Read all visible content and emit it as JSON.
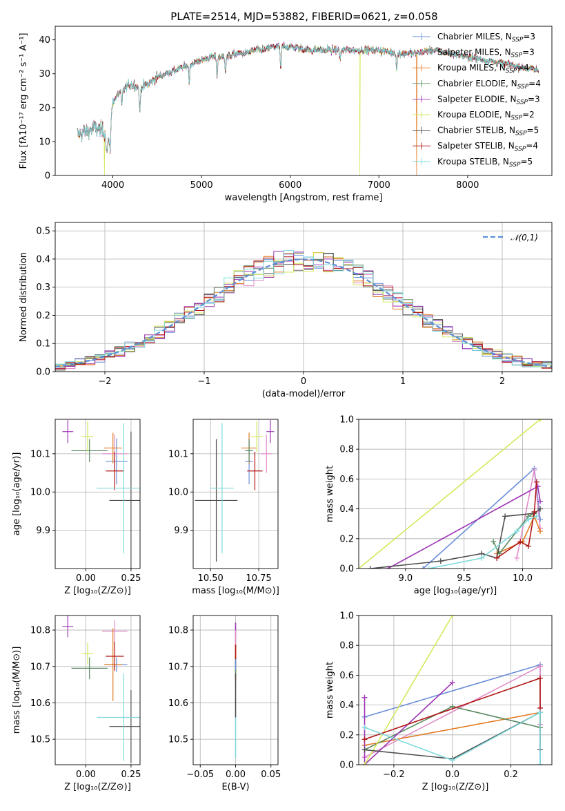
{
  "figure": {
    "title": "PLATE=2514, MJD=53882, FIBERID=0621, z=0.058",
    "models": [
      {
        "name": "Chabrier MILES",
        "nssp": "3",
        "color": "#6a8fd8"
      },
      {
        "name": "Salpeter MILES",
        "nssp": "3",
        "color": "#e08cc8"
      },
      {
        "name": "Kroupa MILES",
        "nssp": "4",
        "color": "#e07b22"
      },
      {
        "name": "Chabrier ELODIE",
        "nssp": "4",
        "color": "#5b8a62"
      },
      {
        "name": "Salpeter ELODIE",
        "nssp": "3",
        "color": "#9c32b4"
      },
      {
        "name": "Kroupa ELODIE",
        "nssp": "2",
        "color": "#d4e85a"
      },
      {
        "name": "Chabrier STELIB",
        "nssp": "5",
        "color": "#4d4d4d"
      },
      {
        "name": "Salpeter STELIB",
        "nssp": "4",
        "color": "#b01414"
      },
      {
        "name": "Kroupa STELIB",
        "nssp": "5",
        "color": "#7fd9dc"
      }
    ],
    "legend_nssp_label": "N",
    "legend_nssp_sub": "SSP"
  },
  "chart_data": [
    {
      "id": "spectrum",
      "type": "line",
      "xlabel": "wavelength [Angstrom, rest frame]",
      "ylabel": "Flux [fλ10⁻¹⁷ erg cm⁻² s⁻¹ A⁻¹]",
      "xlim": [
        3350,
        8950
      ],
      "ylim": [
        0,
        44
      ],
      "xticks": [
        4000,
        5000,
        6000,
        7000,
        8000
      ],
      "yticks": [
        0,
        10,
        20,
        30,
        40
      ],
      "grid": false,
      "legend": "top-right",
      "continuum": {
        "x": [
          3600,
          3700,
          3800,
          3900,
          3960,
          4000,
          4100,
          4200,
          4300,
          4400,
          4500,
          4600,
          4700,
          4800,
          4900,
          5000,
          5100,
          5200,
          5300,
          5400,
          5500,
          5600,
          5700,
          5800,
          5900,
          6000,
          6200,
          6400,
          6600,
          6800,
          7000,
          7200,
          7400,
          7600,
          7800,
          8000,
          8200,
          8400,
          8600,
          8800
        ],
        "y": [
          12,
          13,
          14,
          13,
          10,
          22,
          25,
          27,
          26,
          27,
          29,
          30,
          31,
          32,
          33,
          34,
          35,
          35,
          35,
          36,
          36,
          37,
          37,
          38,
          38,
          38,
          37,
          37,
          37,
          37,
          37,
          36,
          36,
          37,
          36,
          35,
          34,
          33,
          32,
          31
        ]
      },
      "absorption_lines": [
        {
          "x": 3933,
          "depth": 5
        },
        {
          "x": 3968,
          "depth": 5
        },
        {
          "x": 4102,
          "depth": 5
        },
        {
          "x": 4304,
          "depth": 8
        },
        {
          "x": 4861,
          "depth": 5
        },
        {
          "x": 5175,
          "depth": 6
        },
        {
          "x": 5270,
          "depth": 4
        },
        {
          "x": 5893,
          "depth": 7
        },
        {
          "x": 6563,
          "depth": 3
        },
        {
          "x": 7200,
          "depth": 5
        }
      ],
      "spikes": [
        {
          "x": 3905,
          "model": 5,
          "to": 0
        },
        {
          "x": 6785,
          "model": 5,
          "to": 0
        },
        {
          "x": 7425,
          "model": 2,
          "to": 0
        }
      ]
    },
    {
      "id": "residuals",
      "type": "histogram",
      "xlabel": "(data-model)/error",
      "ylabel": "Normed distribution",
      "xlim": [
        -2.5,
        2.5
      ],
      "ylim": [
        0,
        0.53
      ],
      "xticks": [
        -2,
        -1,
        0,
        1,
        2
      ],
      "yticks": [
        0.0,
        0.1,
        0.2,
        0.3,
        0.4,
        0.5
      ],
      "grid": true,
      "legend": "top-right",
      "reference_label": "𝒩(0,1)",
      "bin_width": 0.1
    },
    {
      "id": "age-vs-Z",
      "type": "scatter",
      "xlabel": "Z [log₁₀(Z/Z⊙)]",
      "ylabel": "age  [log₁₀(age/yr)]",
      "xlim": [
        -0.17,
        0.3
      ],
      "ylim": [
        9.8,
        10.19
      ],
      "xticks": [
        0.0,
        0.25
      ],
      "yticks": [
        9.9,
        10.0,
        10.1
      ],
      "grid": true,
      "points": [
        {
          "model": 0,
          "x": 0.17,
          "y": 10.08,
          "xerr": 0.06,
          "yerr": 0.06
        },
        {
          "model": 1,
          "x": 0.16,
          "y": 10.1,
          "xerr": 0.07,
          "yerr": 0.05
        },
        {
          "model": 2,
          "x": 0.15,
          "y": 10.115,
          "xerr": 0.05,
          "yerr": 0.04
        },
        {
          "model": 3,
          "x": 0.02,
          "y": 10.108,
          "xerr": 0.1,
          "yerr": 0.03
        },
        {
          "model": 4,
          "x": -0.1,
          "y": 10.158,
          "xerr": 0.03,
          "yerr": 0.03
        },
        {
          "model": 5,
          "x": 0.01,
          "y": 10.145,
          "xerr": 0.03,
          "yerr": 0.04
        },
        {
          "model": 6,
          "x": 0.25,
          "y": 9.978,
          "xerr": 0.12,
          "yerr": 0.18
        },
        {
          "model": 7,
          "x": 0.16,
          "y": 10.055,
          "xerr": 0.05,
          "yerr": 0.05
        },
        {
          "model": 8,
          "x": 0.21,
          "y": 10.01,
          "xerr": 0.15,
          "yerr": 0.17
        }
      ]
    },
    {
      "id": "age-vs-mass",
      "type": "scatter",
      "xlabel": "mass [log₁₀(M/M⊙)]",
      "ylabel": "",
      "xlim": [
        10.41,
        10.85
      ],
      "ylim": [
        9.8,
        10.19
      ],
      "xticks": [
        10.5,
        10.75
      ],
      "yticks": [
        9.9,
        10.0,
        10.1
      ],
      "grid": true,
      "points": [
        {
          "model": 0,
          "x": 10.7,
          "y": 10.08,
          "xerr": 0.02,
          "yerr": 0.06
        },
        {
          "model": 1,
          "x": 10.79,
          "y": 10.1,
          "xerr": 0.03,
          "yerr": 0.05
        },
        {
          "model": 2,
          "x": 10.7,
          "y": 10.115,
          "xerr": 0.04,
          "yerr": 0.04
        },
        {
          "model": 3,
          "x": 10.7,
          "y": 10.108,
          "xerr": 0.02,
          "yerr": 0.03
        },
        {
          "model": 4,
          "x": 10.81,
          "y": 10.158,
          "xerr": 0.02,
          "yerr": 0.03
        },
        {
          "model": 5,
          "x": 10.74,
          "y": 10.145,
          "xerr": 0.03,
          "yerr": 0.04
        },
        {
          "model": 6,
          "x": 10.53,
          "y": 9.978,
          "xerr": 0.11,
          "yerr": 0.16
        },
        {
          "model": 7,
          "x": 10.73,
          "y": 10.055,
          "xerr": 0.04,
          "yerr": 0.05
        },
        {
          "model": 8,
          "x": 10.56,
          "y": 10.01,
          "xerr": 0.06,
          "yerr": 0.17
        }
      ]
    },
    {
      "id": "mass-weight-vs-age",
      "type": "line",
      "xlabel": "age  [log₁₀(age/yr)]",
      "ylabel": "mass weight",
      "xlim": [
        8.6,
        10.25
      ],
      "ylim": [
        0,
        1.0
      ],
      "xticks": [
        9.0,
        9.5,
        10.0
      ],
      "yticks": [
        0.0,
        0.2,
        0.4,
        0.6,
        0.8,
        1.0
      ],
      "grid": true,
      "series": [
        {
          "model": 0,
          "x": [
            9.15,
            10.1,
            10.15
          ],
          "y": [
            0.0,
            0.67,
            0.33
          ]
        },
        {
          "model": 1,
          "x": [
            9.95,
            10.1,
            10.15
          ],
          "y": [
            0.07,
            0.66,
            0.27
          ]
        },
        {
          "model": 2,
          "x": [
            9.78,
            10.0,
            10.1,
            10.15
          ],
          "y": [
            0.1,
            0.18,
            0.35,
            0.25
          ]
        },
        {
          "model": 3,
          "x": [
            9.75,
            9.8,
            10.05,
            10.1
          ],
          "y": [
            0.18,
            0.1,
            0.35,
            0.37
          ]
        },
        {
          "model": 4,
          "x": [
            8.85,
            10.13,
            10.15
          ],
          "y": [
            0.0,
            0.55,
            0.45
          ]
        },
        {
          "model": 5,
          "x": [
            8.6,
            10.15
          ],
          "y": [
            0.0,
            1.0
          ]
        },
        {
          "model": 6,
          "x": [
            8.7,
            9.3,
            9.65,
            9.78,
            9.85,
            10.1,
            10.15
          ],
          "y": [
            0.0,
            0.05,
            0.1,
            0.07,
            0.35,
            0.37,
            0.4
          ]
        },
        {
          "model": 7,
          "x": [
            9.78,
            9.98,
            10.05,
            10.1,
            10.12
          ],
          "y": [
            0.07,
            0.18,
            0.15,
            0.38,
            0.58
          ]
        },
        {
          "model": 8,
          "x": [
            9.2,
            9.65,
            9.95,
            10.05,
            10.12
          ],
          "y": [
            0.0,
            0.07,
            0.25,
            0.33,
            0.35
          ]
        }
      ]
    },
    {
      "id": "mass-vs-Z",
      "type": "scatter",
      "xlabel": "Z [log₁₀(Z/Z⊙)]",
      "ylabel": "mass [log₁₀(M/M⊙)]",
      "xlim": [
        -0.17,
        0.3
      ],
      "ylim": [
        10.43,
        10.84
      ],
      "xticks": [
        0.0,
        0.25
      ],
      "yticks": [
        10.5,
        10.6,
        10.7,
        10.8
      ],
      "grid": true,
      "points": [
        {
          "model": 0,
          "x": 0.17,
          "y": 10.705,
          "xerr": 0.06,
          "yerr": 0.02
        },
        {
          "model": 1,
          "x": 0.16,
          "y": 10.797,
          "xerr": 0.07,
          "yerr": 0.03
        },
        {
          "model": 2,
          "x": 0.15,
          "y": 10.705,
          "xerr": 0.05,
          "yerr": 0.1
        },
        {
          "model": 3,
          "x": 0.02,
          "y": 10.695,
          "xerr": 0.1,
          "yerr": 0.03
        },
        {
          "model": 4,
          "x": -0.1,
          "y": 10.81,
          "xerr": 0.03,
          "yerr": 0.03
        },
        {
          "model": 5,
          "x": 0.01,
          "y": 10.735,
          "xerr": 0.03,
          "yerr": 0.03
        },
        {
          "model": 6,
          "x": 0.25,
          "y": 10.535,
          "xerr": 0.12,
          "yerr": 0.1
        },
        {
          "model": 7,
          "x": 0.16,
          "y": 10.728,
          "xerr": 0.05,
          "yerr": 0.04
        },
        {
          "model": 8,
          "x": 0.21,
          "y": 10.56,
          "xerr": 0.15,
          "yerr": 0.12
        }
      ]
    },
    {
      "id": "mass-vs-ebv",
      "type": "scatter",
      "xlabel": "E(B-V)",
      "ylabel": "",
      "xlim": [
        -0.06,
        0.06
      ],
      "ylim": [
        10.43,
        10.84
      ],
      "xticks": [
        -0.05,
        0.0,
        0.05
      ],
      "yticks": [
        10.5,
        10.6,
        10.7,
        10.8
      ],
      "grid": true,
      "stack": [
        {
          "model": 4,
          "y0": 10.76,
          "y1": 10.82
        },
        {
          "model": 5,
          "y0": 10.73,
          "y1": 10.78
        },
        {
          "model": 1,
          "y0": 10.76,
          "y1": 10.8
        },
        {
          "model": 2,
          "y0": 10.66,
          "y1": 10.76
        },
        {
          "model": 7,
          "y0": 10.69,
          "y1": 10.76
        },
        {
          "model": 3,
          "y0": 10.67,
          "y1": 10.72
        },
        {
          "model": 0,
          "y0": 10.69,
          "y1": 10.72
        },
        {
          "model": 6,
          "y0": 10.56,
          "y1": 10.68
        },
        {
          "model": 8,
          "y0": 10.45,
          "y1": 10.56
        }
      ]
    },
    {
      "id": "mass-weight-vs-Z",
      "type": "line",
      "xlabel": "Z [log₁₀(Z/Z⊙)]",
      "ylabel": "mass weight",
      "xlim": [
        -0.32,
        0.34
      ],
      "ylim": [
        0,
        1.0
      ],
      "xticks": [
        -0.2,
        0.0,
        0.2
      ],
      "yticks": [
        0.0,
        0.2,
        0.4,
        0.6,
        0.8,
        1.0
      ],
      "grid": true,
      "series": [
        {
          "model": 0,
          "x": [
            -0.3,
            0.3,
            0.3
          ],
          "y": [
            0.32,
            0.67,
            0.0
          ]
        },
        {
          "model": 1,
          "x": [
            -0.3,
            0.3,
            0.3
          ],
          "y": [
            0.05,
            0.66,
            0.27
          ]
        },
        {
          "model": 2,
          "x": [
            -0.3,
            0.3,
            0.3
          ],
          "y": [
            0.13,
            0.35,
            0.25
          ]
        },
        {
          "model": 3,
          "x": [
            -0.3,
            0.0,
            0.3
          ],
          "y": [
            0.1,
            0.39,
            0.25
          ]
        },
        {
          "model": 4,
          "x": [
            -0.3,
            -0.3,
            0.0
          ],
          "y": [
            0.45,
            0.0,
            0.55
          ]
        },
        {
          "model": 5,
          "x": [
            -0.3,
            0.0
          ],
          "y": [
            0.0,
            1.0
          ]
        },
        {
          "model": 6,
          "x": [
            -0.3,
            0.0,
            0.3,
            0.3
          ],
          "y": [
            0.1,
            0.04,
            0.35,
            0.1
          ]
        },
        {
          "model": 7,
          "x": [
            -0.3,
            0.3,
            0.3
          ],
          "y": [
            0.17,
            0.58,
            0.38
          ]
        },
        {
          "model": 8,
          "x": [
            -0.3,
            0.0,
            0.3,
            0.3
          ],
          "y": [
            0.25,
            0.03,
            0.35,
            0.0
          ]
        }
      ]
    }
  ]
}
